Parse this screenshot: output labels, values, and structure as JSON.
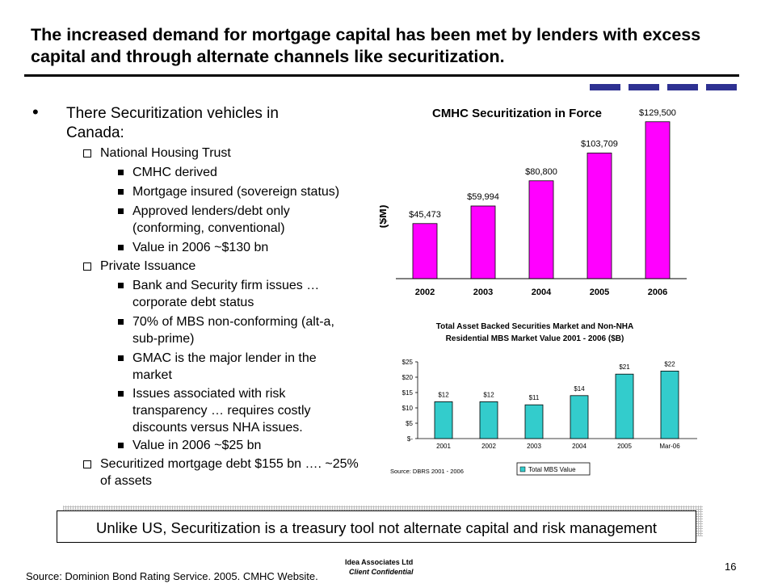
{
  "slide": {
    "title": "The increased demand for mortgage capital has been met by lenders with excess capital and through alternate channels like securitization.",
    "page_number": "16",
    "banner": "Unlike US, Securitization is a treasury tool not alternate capital and risk management",
    "footer_source": "Source: Dominion Bond Rating Service. 2005.  CMHC Website.",
    "footer_company": "Idea Associates Ltd",
    "footer_confidential": "Client Confidential",
    "accent_color": "#2e3192"
  },
  "outline": {
    "l1_a": "There Securitization vehicles in",
    "l1_b": "Canada:",
    "nht": "National Housing Trust",
    "nht_1": "CMHC derived",
    "nht_2": "Mortgage insured (sovereign status)",
    "nht_3a": "Approved lenders/debt only",
    "nht_3b": "(conforming, conventional)",
    "nht_4": "Value in 2006 ~$130 bn",
    "pi": "Private Issuance",
    "pi_1a": "Bank and Security firm issues …",
    "pi_1b": "corporate debt status",
    "pi_2a": "70% of MBS non-conforming (alt-a,",
    "pi_2b": "sub-prime)",
    "pi_3a": "GMAC is the major lender in the",
    "pi_3b": "market",
    "pi_4a": "Issues associated with risk",
    "pi_4b": "transparency … requires costly",
    "pi_4c": "discounts versus NHA issues.",
    "pi_5": "Value in 2006 ~$25 bn",
    "sec_a": "Securitized mortgage debt $155 bn …. ~25%",
    "sec_b": "of assets"
  },
  "chart_data": [
    {
      "type": "bar",
      "title": "CMHC Securitization in Force",
      "ylabel": "($M)",
      "categories": [
        "2002",
        "2003",
        "2004",
        "2005",
        "2006"
      ],
      "values": [
        45473,
        59994,
        80800,
        103709,
        129500
      ],
      "labels": [
        "$45,473",
        "$59,994",
        "$80,800",
        "$103,709",
        "$129,500"
      ],
      "ylim": [
        0,
        140000
      ],
      "bar_color": "#ff00ff",
      "grid": false
    },
    {
      "type": "bar",
      "title_line1": "Total Asset Backed Securities Market and Non-NHA",
      "title_line2": "Residential MBS Market Value 2001 - 2006 ($B)",
      "categories": [
        "2001",
        "2002",
        "2003",
        "2004",
        "2005",
        "Mar-06"
      ],
      "values": [
        12,
        12,
        11,
        14,
        21,
        22
      ],
      "labels": [
        "$12",
        "$12",
        "$11",
        "$14",
        "$21",
        "$22"
      ],
      "yticks": [
        "$-",
        "$5",
        "$10",
        "$15",
        "$20",
        "$25"
      ],
      "ylim": [
        0,
        25
      ],
      "legend": "Total MBS Value",
      "source": "Source: DBRS 2001 - 2006",
      "bar_color": "#33cccc",
      "grid": false
    }
  ]
}
